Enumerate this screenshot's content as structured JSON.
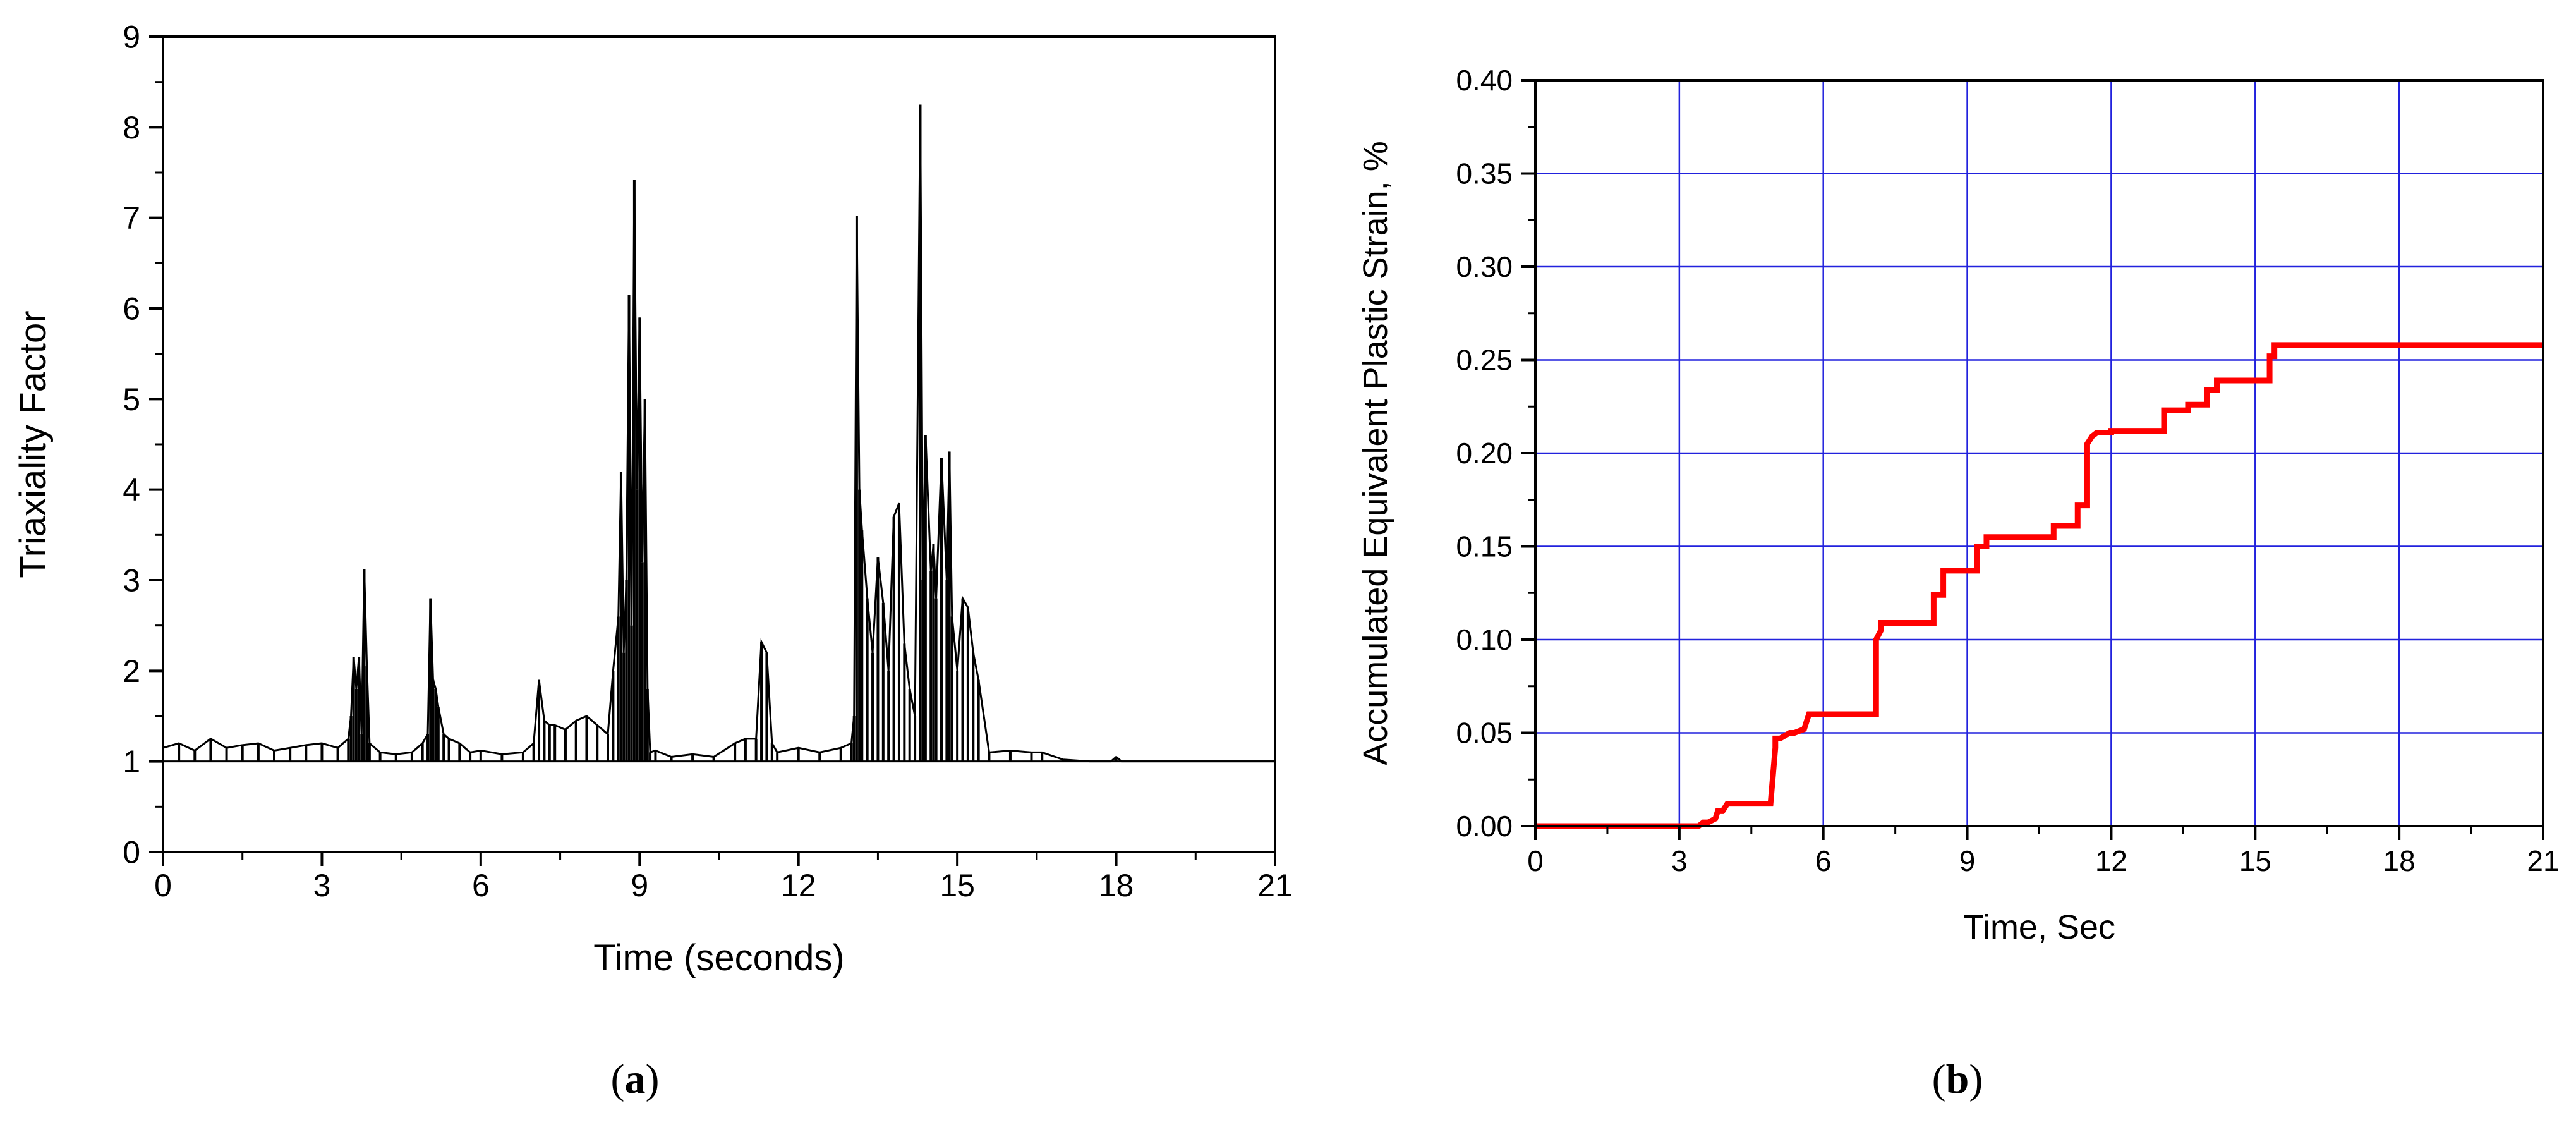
{
  "chart_data": [
    {
      "type": "line",
      "panel_label_open": "(",
      "panel_label": "a",
      "panel_label_close": ")",
      "title": "",
      "xlabel": "Time (seconds)",
      "ylabel": "Triaxiality Factor",
      "xlim": [
        0,
        21
      ],
      "ylim": [
        0,
        9
      ],
      "xticks": [
        0,
        3,
        6,
        9,
        12,
        15,
        18,
        21
      ],
      "yticks": [
        0,
        1,
        2,
        3,
        4,
        5,
        6,
        7,
        8,
        9
      ],
      "grid": false,
      "legend": "none",
      "color": "#000000",
      "baseline": 1.0,
      "series": [
        {
          "x": [
            0,
            0.3,
            0.6,
            0.9,
            1.2,
            1.5,
            1.8,
            2.1,
            2.4,
            2.7,
            3.0,
            3.3,
            3.5,
            3.55,
            3.6,
            3.65,
            3.7,
            3.75,
            3.8,
            3.85,
            3.9,
            4.1,
            4.4,
            4.7,
            4.9,
            5.0,
            5.05,
            5.1,
            5.15,
            5.2,
            5.3,
            5.4,
            5.6,
            5.8,
            6.0,
            6.4,
            6.8,
            7.0,
            7.1,
            7.2,
            7.3,
            7.4,
            7.6,
            7.8,
            8.0,
            8.2,
            8.4,
            8.5,
            8.6,
            8.65,
            8.7,
            8.75,
            8.8,
            8.85,
            8.9,
            8.95,
            9.0,
            9.05,
            9.1,
            9.15,
            9.2,
            9.3,
            9.6,
            10.0,
            10.4,
            10.8,
            11.0,
            11.2,
            11.3,
            11.4,
            11.5,
            11.6,
            12.0,
            12.4,
            12.8,
            13.0,
            13.05,
            13.1,
            13.15,
            13.2,
            13.3,
            13.4,
            13.5,
            13.6,
            13.7,
            13.8,
            13.9,
            14.0,
            14.1,
            14.2,
            14.3,
            14.35,
            14.4,
            14.5,
            14.55,
            14.6,
            14.7,
            14.8,
            14.85,
            14.9,
            15.0,
            15.1,
            15.2,
            15.3,
            15.4,
            15.6,
            16.0,
            16.4,
            16.6,
            17.0,
            17.5,
            17.9,
            18.0,
            18.1,
            18.5,
            19.0,
            20.0,
            21.0
          ],
          "y": [
            1.15,
            1.2,
            1.12,
            1.25,
            1.15,
            1.18,
            1.2,
            1.12,
            1.15,
            1.18,
            1.2,
            1.15,
            1.25,
            1.5,
            2.15,
            1.8,
            2.15,
            1.3,
            3.12,
            2.05,
            1.2,
            1.1,
            1.08,
            1.1,
            1.2,
            1.3,
            2.8,
            1.9,
            1.8,
            1.6,
            1.3,
            1.25,
            1.2,
            1.1,
            1.12,
            1.08,
            1.1,
            1.2,
            1.9,
            1.45,
            1.4,
            1.4,
            1.35,
            1.45,
            1.5,
            1.4,
            1.3,
            2.0,
            2.6,
            4.2,
            2.2,
            3.0,
            6.15,
            2.5,
            7.42,
            4.0,
            5.9,
            3.2,
            5.0,
            1.8,
            1.1,
            1.12,
            1.05,
            1.08,
            1.05,
            1.2,
            1.25,
            1.25,
            2.32,
            2.2,
            1.2,
            1.1,
            1.15,
            1.1,
            1.15,
            1.2,
            1.5,
            7.02,
            4.0,
            3.55,
            2.8,
            2.2,
            3.25,
            2.75,
            2.0,
            3.7,
            3.85,
            2.3,
            1.8,
            1.5,
            8.25,
            3.0,
            4.6,
            3.1,
            3.4,
            2.8,
            4.35,
            3.0,
            4.42,
            2.6,
            2.0,
            2.8,
            2.7,
            2.2,
            1.9,
            1.1,
            1.12,
            1.1,
            1.1,
            1.02,
            1.0,
            1.0,
            1.05,
            1.0,
            1.0,
            1.0,
            1.0,
            1.0
          ]
        }
      ]
    },
    {
      "type": "line",
      "panel_label_open": "(",
      "panel_label": "b",
      "panel_label_close": ")",
      "title": "",
      "xlabel": "Time, Sec",
      "ylabel": "Accumulated Equivalent Plastic Strain, %",
      "xlim": [
        0,
        21
      ],
      "ylim": [
        0,
        0.4
      ],
      "xticks": [
        0,
        3,
        6,
        9,
        12,
        15,
        18,
        21
      ],
      "yticks": [
        "0.00",
        "0.05",
        "0.10",
        "0.15",
        "0.20",
        "0.25",
        "0.30",
        "0.35",
        "0.40"
      ],
      "grid": true,
      "grid_color": "#2222dd",
      "legend": "none",
      "color": "#ff0000",
      "series": [
        {
          "x": [
            0.0,
            3.4,
            3.5,
            3.6,
            3.75,
            3.8,
            3.9,
            4.0,
            4.9,
            5.0,
            5.0,
            5.1,
            5.3,
            5.4,
            5.6,
            5.7,
            7.1,
            7.1,
            7.2,
            7.2,
            8.3,
            8.3,
            8.5,
            8.5,
            9.2,
            9.2,
            9.4,
            9.4,
            10.8,
            10.8,
            11.3,
            11.3,
            11.5,
            11.5,
            11.6,
            11.7,
            12.0,
            12.0,
            13.1,
            13.1,
            13.6,
            13.6,
            14.0,
            14.0,
            14.2,
            14.2,
            15.3,
            15.3,
            15.4,
            15.4,
            21.0
          ],
          "y": [
            0.0,
            0.0,
            0.002,
            0.002,
            0.004,
            0.008,
            0.008,
            0.012,
            0.012,
            0.042,
            0.047,
            0.047,
            0.05,
            0.05,
            0.052,
            0.06,
            0.06,
            0.1,
            0.105,
            0.109,
            0.109,
            0.124,
            0.124,
            0.137,
            0.137,
            0.15,
            0.15,
            0.155,
            0.155,
            0.161,
            0.161,
            0.172,
            0.172,
            0.205,
            0.209,
            0.211,
            0.211,
            0.212,
            0.212,
            0.223,
            0.223,
            0.226,
            0.226,
            0.234,
            0.234,
            0.239,
            0.239,
            0.252,
            0.252,
            0.258,
            0.258
          ]
        }
      ]
    }
  ]
}
